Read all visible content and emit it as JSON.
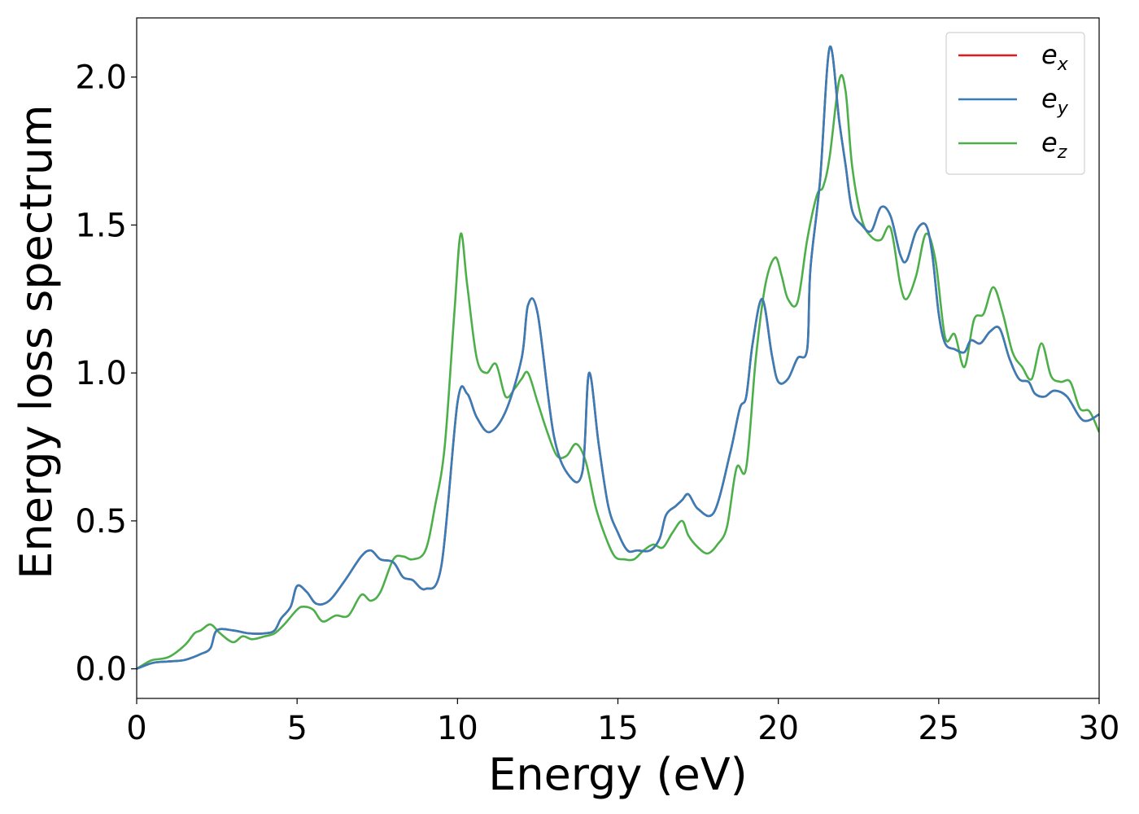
{
  "chart_data": {
    "type": "line",
    "title": "",
    "xlabel": "Energy (eV)",
    "ylabel": "Energy loss spectrum",
    "xlim": [
      0,
      30
    ],
    "ylim": [
      -0.1,
      2.2
    ],
    "xticks": [
      0,
      5,
      10,
      15,
      20,
      25,
      30
    ],
    "xtick_labels": [
      "0",
      "5",
      "10",
      "15",
      "20",
      "25",
      "30"
    ],
    "yticks": [
      0.0,
      0.5,
      1.0,
      1.5,
      2.0
    ],
    "ytick_labels": [
      "0.0",
      "0.5",
      "1.0",
      "1.5",
      "2.0"
    ],
    "grid": false,
    "legend_position": "top-right",
    "series": [
      {
        "name": "e_x",
        "legend_base": "e",
        "legend_sub": "x",
        "color": "#e41a1c",
        "x": [
          0,
          0.5,
          1,
          1.5,
          2,
          2.3,
          2.5,
          3,
          3.5,
          4,
          4.3,
          4.5,
          4.8,
          5,
          5.3,
          5.6,
          6,
          6.5,
          7,
          7.3,
          7.6,
          8,
          8.3,
          8.6,
          9,
          9.5,
          10,
          10.3,
          10.6,
          11,
          11.5,
          12,
          12.2,
          12.5,
          13,
          13.5,
          13.9,
          14.1,
          14.4,
          14.7,
          15,
          15.3,
          15.6,
          16,
          16.3,
          16.5,
          16.8,
          17,
          17.2,
          17.5,
          18,
          18.5,
          18.8,
          19,
          19.2,
          19.5,
          19.8,
          20,
          20.3,
          20.6,
          20.9,
          21,
          21.3,
          21.6,
          21.9,
          22.1,
          22.3,
          22.6,
          22.9,
          23.2,
          23.5,
          23.8,
          24,
          24.3,
          24.6,
          24.8,
          25,
          25.2,
          25.5,
          25.8,
          26,
          26.3,
          26.6,
          26.9,
          27.2,
          27.5,
          27.8,
          28,
          28.3,
          28.6,
          29,
          29.5,
          30
        ],
        "y": [
          0,
          0.02,
          0.025,
          0.03,
          0.05,
          0.07,
          0.13,
          0.13,
          0.12,
          0.12,
          0.13,
          0.17,
          0.21,
          0.28,
          0.26,
          0.22,
          0.23,
          0.3,
          0.38,
          0.4,
          0.37,
          0.36,
          0.31,
          0.3,
          0.27,
          0.35,
          0.9,
          0.93,
          0.85,
          0.8,
          0.87,
          1.05,
          1.23,
          1.2,
          0.79,
          0.65,
          0.67,
          1.0,
          0.76,
          0.55,
          0.46,
          0.4,
          0.4,
          0.4,
          0.44,
          0.52,
          0.55,
          0.57,
          0.59,
          0.54,
          0.53,
          0.73,
          0.88,
          0.92,
          1.1,
          1.25,
          1.06,
          0.97,
          0.98,
          1.05,
          1.08,
          1.35,
          1.65,
          2.1,
          1.85,
          1.7,
          1.55,
          1.5,
          1.48,
          1.56,
          1.53,
          1.4,
          1.38,
          1.48,
          1.5,
          1.4,
          1.2,
          1.1,
          1.08,
          1.07,
          1.11,
          1.1,
          1.14,
          1.15,
          1.05,
          0.98,
          0.97,
          0.93,
          0.92,
          0.94,
          0.92,
          0.84,
          0.86
        ]
      },
      {
        "name": "e_y",
        "legend_base": "e",
        "legend_sub": "y",
        "color": "#377eb8",
        "x": [
          0,
          0.5,
          1,
          1.5,
          2,
          2.3,
          2.5,
          3,
          3.5,
          4,
          4.3,
          4.5,
          4.8,
          5,
          5.3,
          5.6,
          6,
          6.5,
          7,
          7.3,
          7.6,
          8,
          8.3,
          8.6,
          9,
          9.5,
          10,
          10.3,
          10.6,
          11,
          11.5,
          12,
          12.2,
          12.5,
          13,
          13.5,
          13.9,
          14.1,
          14.4,
          14.7,
          15,
          15.3,
          15.6,
          16,
          16.3,
          16.5,
          16.8,
          17,
          17.2,
          17.5,
          18,
          18.5,
          18.8,
          19,
          19.2,
          19.5,
          19.8,
          20,
          20.3,
          20.6,
          20.9,
          21,
          21.3,
          21.6,
          21.9,
          22.1,
          22.3,
          22.6,
          22.9,
          23.2,
          23.5,
          23.8,
          24,
          24.3,
          24.6,
          24.8,
          25,
          25.2,
          25.5,
          25.8,
          26,
          26.3,
          26.6,
          26.9,
          27.2,
          27.5,
          27.8,
          28,
          28.3,
          28.6,
          29,
          29.5,
          30
        ],
        "y": [
          0,
          0.02,
          0.025,
          0.03,
          0.05,
          0.07,
          0.13,
          0.13,
          0.12,
          0.12,
          0.13,
          0.17,
          0.21,
          0.28,
          0.26,
          0.22,
          0.23,
          0.3,
          0.38,
          0.4,
          0.37,
          0.36,
          0.31,
          0.3,
          0.27,
          0.35,
          0.9,
          0.93,
          0.85,
          0.8,
          0.87,
          1.05,
          1.23,
          1.2,
          0.79,
          0.65,
          0.67,
          1.0,
          0.76,
          0.55,
          0.46,
          0.4,
          0.4,
          0.4,
          0.44,
          0.52,
          0.55,
          0.57,
          0.59,
          0.54,
          0.53,
          0.73,
          0.88,
          0.92,
          1.1,
          1.25,
          1.06,
          0.97,
          0.98,
          1.05,
          1.08,
          1.35,
          1.65,
          2.1,
          1.85,
          1.7,
          1.55,
          1.5,
          1.48,
          1.56,
          1.53,
          1.4,
          1.38,
          1.48,
          1.5,
          1.4,
          1.2,
          1.1,
          1.08,
          1.07,
          1.11,
          1.1,
          1.14,
          1.15,
          1.05,
          0.98,
          0.97,
          0.93,
          0.92,
          0.94,
          0.92,
          0.84,
          0.86
        ]
      },
      {
        "name": "e_z",
        "legend_base": "e",
        "legend_sub": "z",
        "color": "#4daf4a",
        "x": [
          0,
          0.3,
          0.5,
          1,
          1.5,
          1.8,
          2,
          2.3,
          2.6,
          3,
          3.3,
          3.6,
          4,
          4.3,
          4.6,
          5,
          5.2,
          5.5,
          5.8,
          6.2,
          6.6,
          7,
          7.3,
          7.6,
          8,
          8.3,
          8.6,
          9,
          9.3,
          9.6,
          9.9,
          10.1,
          10.3,
          10.6,
          10.9,
          11.2,
          11.5,
          11.8,
          12,
          12.2,
          12.5,
          12.8,
          13.1,
          13.4,
          13.7,
          14,
          14.3,
          14.6,
          14.9,
          15.2,
          15.5,
          15.8,
          16.1,
          16.4,
          16.7,
          17,
          17.2,
          17.5,
          17.8,
          18.1,
          18.4,
          18.7,
          19,
          19.3,
          19.6,
          19.9,
          20.1,
          20.3,
          20.6,
          20.9,
          21.2,
          21.4,
          21.6,
          21.9,
          22.1,
          22.3,
          22.6,
          22.9,
          23.2,
          23.5,
          23.8,
          24,
          24.3,
          24.6,
          24.9,
          25.2,
          25.5,
          25.8,
          26.1,
          26.4,
          26.7,
          27,
          27.3,
          27.6,
          27.9,
          28.2,
          28.5,
          28.8,
          29.1,
          29.4,
          29.7,
          30
        ],
        "y": [
          0,
          0.02,
          0.03,
          0.04,
          0.08,
          0.12,
          0.13,
          0.15,
          0.12,
          0.09,
          0.11,
          0.1,
          0.11,
          0.12,
          0.15,
          0.2,
          0.21,
          0.2,
          0.16,
          0.18,
          0.18,
          0.25,
          0.23,
          0.26,
          0.37,
          0.38,
          0.37,
          0.4,
          0.55,
          0.75,
          1.2,
          1.47,
          1.3,
          1.05,
          1.0,
          1.03,
          0.92,
          0.95,
          0.98,
          1.0,
          0.9,
          0.8,
          0.72,
          0.72,
          0.76,
          0.7,
          0.55,
          0.45,
          0.38,
          0.37,
          0.37,
          0.4,
          0.42,
          0.41,
          0.46,
          0.5,
          0.45,
          0.41,
          0.39,
          0.42,
          0.48,
          0.68,
          0.68,
          1.05,
          1.3,
          1.39,
          1.33,
          1.25,
          1.24,
          1.45,
          1.6,
          1.63,
          1.73,
          1.99,
          1.95,
          1.7,
          1.52,
          1.46,
          1.45,
          1.49,
          1.3,
          1.25,
          1.33,
          1.47,
          1.38,
          1.12,
          1.13,
          1.02,
          1.18,
          1.2,
          1.29,
          1.2,
          1.07,
          1.02,
          0.98,
          1.1,
          0.99,
          0.97,
          0.97,
          0.88,
          0.87,
          0.8
        ]
      }
    ]
  }
}
